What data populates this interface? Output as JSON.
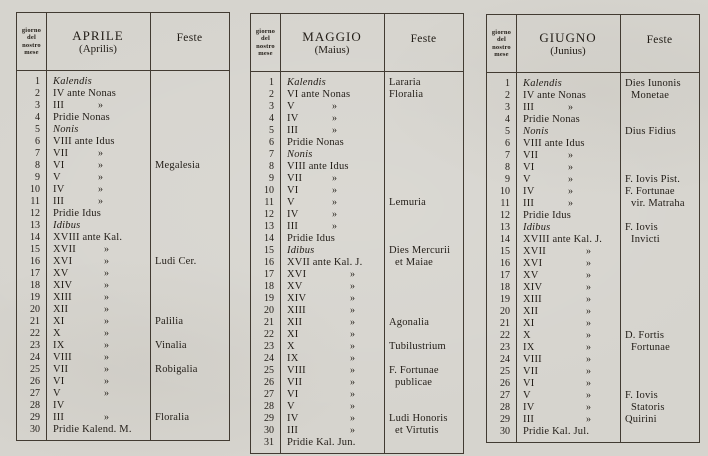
{
  "page": {
    "paper_color": "#d6d4ce",
    "ink_color": "#221d17",
    "line_color": "#423b32",
    "ditto_mark": "»"
  },
  "tables": [
    {
      "id": "aprile",
      "day_header": [
        "giorno",
        "del",
        "nostro",
        "mese"
      ],
      "month_name": "APRILE",
      "month_latin": "(Aprilis)",
      "feste_label": "Feste",
      "rows": [
        {
          "d": "1",
          "n": "Kalendis",
          "it": true
        },
        {
          "d": "2",
          "n": "IV ante Nonas"
        },
        {
          "d": "3",
          "n": "III",
          "dt": 1
        },
        {
          "d": "4",
          "n": "Pridie Nonas"
        },
        {
          "d": "5",
          "n": "Nonis",
          "it": true
        },
        {
          "d": "6",
          "n": "VIII ante Idus"
        },
        {
          "d": "7",
          "n": "VII",
          "dt": 1
        },
        {
          "d": "8",
          "n": "VI",
          "dt": 1,
          "f": "Megalesia"
        },
        {
          "d": "9",
          "n": "V",
          "dt": 1
        },
        {
          "d": "10",
          "n": "IV",
          "dt": 1
        },
        {
          "d": "11",
          "n": "III",
          "dt": 1
        },
        {
          "d": "12",
          "n": "Pridie Idus"
        },
        {
          "d": "13",
          "n": "Idibus",
          "it": true
        },
        {
          "d": "14",
          "n": "XVIII ante Kal."
        },
        {
          "d": "15",
          "n": "XVII",
          "dt": 2
        },
        {
          "d": "16",
          "n": "XVI",
          "dt": 2,
          "f": "Ludi Cer."
        },
        {
          "d": "17",
          "n": "XV",
          "dt": 2
        },
        {
          "d": "18",
          "n": "XIV",
          "dt": 2
        },
        {
          "d": "19",
          "n": "XIII",
          "dt": 2
        },
        {
          "d": "20",
          "n": "XII",
          "dt": 2
        },
        {
          "d": "21",
          "n": "XI",
          "dt": 2,
          "f": "Palilia"
        },
        {
          "d": "22",
          "n": "X",
          "dt": 2
        },
        {
          "d": "23",
          "n": "IX",
          "dt": 2,
          "f": "Vinalia"
        },
        {
          "d": "24",
          "n": "VIII",
          "dt": 2
        },
        {
          "d": "25",
          "n": "VII",
          "dt": 2,
          "f": "Robigalia"
        },
        {
          "d": "26",
          "n": "VI",
          "dt": 2
        },
        {
          "d": "27",
          "n": "V",
          "dt": 2
        },
        {
          "d": "28",
          "n": "IV"
        },
        {
          "d": "29",
          "n": "III",
          "dt": 2,
          "f": "Floralia"
        },
        {
          "d": "30",
          "n": "Pridie Kalend. M."
        }
      ]
    },
    {
      "id": "maggio",
      "day_header": [
        "giorno",
        "del",
        "nostro",
        "mese"
      ],
      "month_name": "MAGGIO",
      "month_latin": "(Maius)",
      "feste_label": "Feste",
      "rows": [
        {
          "d": "1",
          "n": "Kalendis",
          "it": true,
          "f": "Lararia"
        },
        {
          "d": "2",
          "n": "VI ante Nonas",
          "f": "Floralia"
        },
        {
          "d": "3",
          "n": "V",
          "dt": 1
        },
        {
          "d": "4",
          "n": "IV",
          "dt": 1
        },
        {
          "d": "5",
          "n": "III",
          "dt": 1
        },
        {
          "d": "6",
          "n": "Pridie Nonas"
        },
        {
          "d": "7",
          "n": "Nonis",
          "it": true
        },
        {
          "d": "8",
          "n": "VIII ante Idus"
        },
        {
          "d": "9",
          "n": "VII",
          "dt": 1
        },
        {
          "d": "10",
          "n": "VI",
          "dt": 1
        },
        {
          "d": "11",
          "n": "V",
          "dt": 1,
          "f": "Lemuria"
        },
        {
          "d": "12",
          "n": "IV",
          "dt": 1
        },
        {
          "d": "13",
          "n": "III",
          "dt": 1
        },
        {
          "d": "14",
          "n": "Pridie Idus"
        },
        {
          "d": "15",
          "n": "Idibus",
          "it": true,
          "f": "Dies Mercurii"
        },
        {
          "d": "16",
          "n": "XVII ante Kal. J.",
          "f": "et Maiae",
          "fi": true
        },
        {
          "d": "17",
          "n": "XVI",
          "dt": 2
        },
        {
          "d": "18",
          "n": "XV",
          "dt": 2
        },
        {
          "d": "19",
          "n": "XIV",
          "dt": 2
        },
        {
          "d": "20",
          "n": "XIII",
          "dt": 2
        },
        {
          "d": "21",
          "n": "XII",
          "dt": 2,
          "f": "Agonalia"
        },
        {
          "d": "22",
          "n": "XI",
          "dt": 2
        },
        {
          "d": "23",
          "n": "X",
          "dt": 2,
          "f": "Tubilustrium"
        },
        {
          "d": "24",
          "n": "IX",
          "dt": 2
        },
        {
          "d": "25",
          "n": "VIII",
          "dt": 2,
          "f": "F. Fortunae"
        },
        {
          "d": "26",
          "n": "VII",
          "dt": 2,
          "f": "publicae",
          "fi": true
        },
        {
          "d": "27",
          "n": "VI",
          "dt": 2
        },
        {
          "d": "28",
          "n": "V",
          "dt": 2
        },
        {
          "d": "29",
          "n": "IV",
          "dt": 2,
          "f": "Ludi Honoris"
        },
        {
          "d": "30",
          "n": "III",
          "dt": 2,
          "f": "et Virtutis",
          "fi": true
        },
        {
          "d": "31",
          "n": "Pridie Kal. Jun."
        }
      ]
    },
    {
      "id": "giugno",
      "day_header": [
        "giorno",
        "del",
        "nostro",
        "mese"
      ],
      "month_name": "GIUGNO",
      "month_latin": "(Junius)",
      "feste_label": "Feste",
      "rows": [
        {
          "d": "1",
          "n": "Kalendis",
          "it": true,
          "f": "Dies Iunonis"
        },
        {
          "d": "2",
          "n": "IV ante Nonas",
          "f": "Monetae",
          "fi": true
        },
        {
          "d": "3",
          "n": "III",
          "dt": 1
        },
        {
          "d": "4",
          "n": "Pridie Nonas"
        },
        {
          "d": "5",
          "n": "Nonis",
          "it": true,
          "f": "Dius Fidius"
        },
        {
          "d": "6",
          "n": "VIII ante Idus"
        },
        {
          "d": "7",
          "n": "VII",
          "dt": 1
        },
        {
          "d": "8",
          "n": "VI",
          "dt": 1
        },
        {
          "d": "9",
          "n": "V",
          "dt": 1,
          "f": "F. Iovis Pist."
        },
        {
          "d": "10",
          "n": "IV",
          "dt": 1,
          "f": "F. Fortunae"
        },
        {
          "d": "11",
          "n": "III",
          "dt": 1,
          "f": "vir. Matraha",
          "fi": true
        },
        {
          "d": "12",
          "n": "Pridie Idus"
        },
        {
          "d": "13",
          "n": "Idibus",
          "it": true,
          "f": "F. Iovis"
        },
        {
          "d": "14",
          "n": "XVIII ante Kal. J.",
          "f": "Invicti",
          "fi": true
        },
        {
          "d": "15",
          "n": "XVII",
          "dt": 2
        },
        {
          "d": "16",
          "n": "XVI",
          "dt": 2
        },
        {
          "d": "17",
          "n": "XV",
          "dt": 2
        },
        {
          "d": "18",
          "n": "XIV",
          "dt": 2
        },
        {
          "d": "19",
          "n": "XIII",
          "dt": 2
        },
        {
          "d": "20",
          "n": "XII",
          "dt": 2
        },
        {
          "d": "21",
          "n": "XI",
          "dt": 2
        },
        {
          "d": "22",
          "n": "X",
          "dt": 2,
          "f": "D. Fortis"
        },
        {
          "d": "23",
          "n": "IX",
          "dt": 2,
          "f": "Fortunae",
          "fi": true
        },
        {
          "d": "24",
          "n": "VIII",
          "dt": 2
        },
        {
          "d": "25",
          "n": "VII",
          "dt": 2
        },
        {
          "d": "26",
          "n": "VI",
          "dt": 2
        },
        {
          "d": "27",
          "n": "V",
          "dt": 2,
          "f": "F. Iovis"
        },
        {
          "d": "28",
          "n": "IV",
          "dt": 2,
          "f": "Statoris",
          "fi": true
        },
        {
          "d": "29",
          "n": "III",
          "dt": 2,
          "f": "Quirini"
        },
        {
          "d": "30",
          "n": "Pridie Kal. Jul."
        }
      ]
    }
  ]
}
